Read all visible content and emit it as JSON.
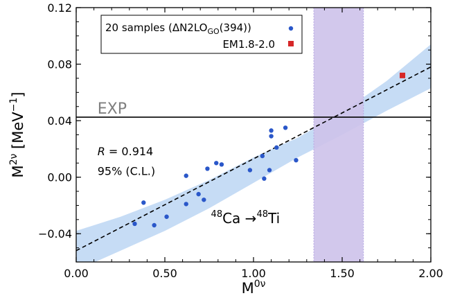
{
  "chart_data": {
    "type": "scatter",
    "xlabel_main": "M",
    "xlabel_sup": "0ν",
    "ylabel_main": "M",
    "ylabel_sup": "2ν",
    "ylabel_units_pre": " [MeV",
    "ylabel_units_sup": "−1",
    "ylabel_units_post": "]",
    "xlim": [
      0.0,
      2.0
    ],
    "ylim": [
      -0.06,
      0.12
    ],
    "xticks": [
      0.0,
      0.5,
      1.0,
      1.5,
      2.0
    ],
    "xtick_labels": [
      "0.00",
      "0.50",
      "1.00",
      "1.50",
      "2.00"
    ],
    "yticks": [
      -0.04,
      0.0,
      0.04,
      0.08,
      0.12
    ],
    "ytick_labels": [
      "−0.04",
      "0.00",
      "0.04",
      "0.08",
      "0.12"
    ],
    "grid": false,
    "legend_position": "top-left",
    "series": [
      {
        "name_main": "20 samples (ΔN2LO",
        "name_sub": "GO",
        "name_post": "(394))",
        "color": "#2a57c9",
        "marker": "circle",
        "points": [
          [
            0.33,
            -0.033
          ],
          [
            0.38,
            -0.018
          ],
          [
            0.44,
            -0.034
          ],
          [
            0.51,
            -0.028
          ],
          [
            0.62,
            0.001
          ],
          [
            0.62,
            -0.019
          ],
          [
            0.69,
            -0.012
          ],
          [
            0.72,
            -0.016
          ],
          [
            0.74,
            0.006
          ],
          [
            0.79,
            0.01
          ],
          [
            0.82,
            0.009
          ],
          [
            0.98,
            0.005
          ],
          [
            1.05,
            0.015
          ],
          [
            1.06,
            -0.001
          ],
          [
            1.09,
            0.005
          ],
          [
            1.1,
            0.029
          ],
          [
            1.1,
            0.033
          ],
          [
            1.13,
            0.021
          ],
          [
            1.18,
            0.035
          ],
          [
            1.24,
            0.012
          ]
        ]
      },
      {
        "name": "EM1.8-2.0",
        "color": "#d62728",
        "marker": "square",
        "points": [
          [
            1.84,
            0.072
          ]
        ]
      }
    ],
    "fit_line": {
      "intercept": -0.052,
      "slope": 0.065,
      "color": "#000000",
      "style": "dashed"
    },
    "confidence_band": {
      "color": "#c6dcf5",
      "x": [
        0.0,
        0.25,
        0.5,
        0.75,
        1.0,
        1.25,
        1.5,
        1.75,
        2.0
      ],
      "lower": [
        -0.066,
        -0.052,
        -0.038,
        -0.022,
        -0.004,
        0.014,
        0.03,
        0.047,
        0.063
      ],
      "upper": [
        -0.038,
        -0.028,
        -0.016,
        -0.002,
        0.014,
        0.028,
        0.046,
        0.068,
        0.094
      ]
    },
    "exp_band": {
      "x_range": [
        1.34,
        1.62
      ],
      "color": "#cdc2ea"
    },
    "exp_line": {
      "y": 0.0425,
      "color": "#000000",
      "label": "EXP",
      "label_color": "#7f7f7f"
    },
    "annotations": {
      "r_symbol": "R",
      "r_value": " = 0.914",
      "confidence": "95% (C.L.)",
      "reaction_sup1": "48",
      "reaction_mid": "Ca →",
      "reaction_sup2": "48",
      "reaction_end": "Ti"
    }
  }
}
